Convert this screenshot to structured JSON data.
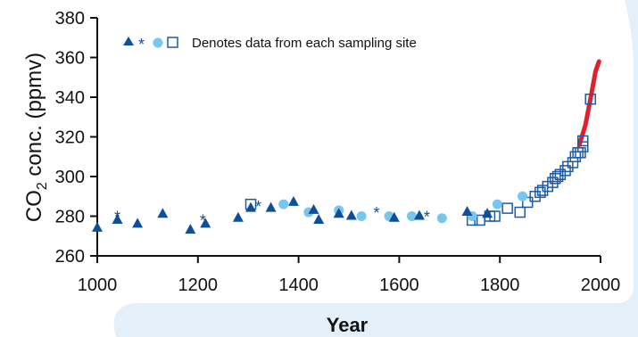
{
  "chart_data": {
    "type": "scatter",
    "xlabel": "Year",
    "ylabel_main": "CO",
    "ylabel_sub": "2",
    "ylabel_tail": " conc. (ppmv)",
    "legend_text": "Denotes data from each sampling site",
    "xlim": [
      1000,
      2000
    ],
    "ylim": [
      260,
      380
    ],
    "x_ticks": [
      1000,
      1200,
      1400,
      1600,
      1800,
      2000
    ],
    "y_ticks": [
      260,
      280,
      300,
      320,
      340,
      360,
      380
    ],
    "colors": {
      "triangle": "#0d4f9c",
      "star": "#0d4f9c",
      "circle": "#76c6ee",
      "square": "#1f5aa6",
      "instrumental": "#e0202a"
    },
    "series": [
      {
        "marker": "triangle",
        "points": [
          [
            1000,
            274
          ],
          [
            1040,
            278
          ],
          [
            1080,
            276
          ],
          [
            1130,
            281
          ],
          [
            1185,
            273
          ],
          [
            1215,
            276
          ],
          [
            1280,
            279
          ],
          [
            1305,
            284
          ],
          [
            1345,
            284
          ],
          [
            1390,
            287
          ],
          [
            1430,
            283
          ],
          [
            1440,
            278
          ],
          [
            1480,
            281
          ],
          [
            1505,
            280
          ],
          [
            1590,
            279
          ],
          [
            1640,
            280
          ],
          [
            1735,
            282
          ],
          [
            1775,
            281
          ]
        ]
      },
      {
        "marker": "star",
        "points": [
          [
            1040,
            281
          ],
          [
            1210,
            279
          ],
          [
            1320,
            286
          ],
          [
            1555,
            283
          ],
          [
            1655,
            281
          ]
        ]
      },
      {
        "marker": "circle",
        "points": [
          [
            1370,
            286
          ],
          [
            1420,
            282
          ],
          [
            1480,
            283
          ],
          [
            1525,
            280
          ],
          [
            1580,
            280
          ],
          [
            1625,
            280
          ],
          [
            1685,
            279
          ],
          [
            1745,
            280
          ],
          [
            1795,
            286
          ],
          [
            1845,
            290
          ]
        ]
      },
      {
        "marker": "square",
        "points": [
          [
            1305,
            286
          ],
          [
            1745,
            278
          ],
          [
            1760,
            278
          ],
          [
            1780,
            280
          ],
          [
            1790,
            280
          ],
          [
            1815,
            284
          ],
          [
            1840,
            282
          ],
          [
            1855,
            287
          ],
          [
            1870,
            290
          ],
          [
            1880,
            292
          ],
          [
            1885,
            293
          ],
          [
            1895,
            295
          ],
          [
            1905,
            297
          ],
          [
            1910,
            299
          ],
          [
            1915,
            300
          ],
          [
            1920,
            301
          ],
          [
            1930,
            303
          ],
          [
            1935,
            305
          ],
          [
            1945,
            307
          ],
          [
            1950,
            310
          ],
          [
            1955,
            312
          ],
          [
            1960,
            312
          ],
          [
            1965,
            315
          ],
          [
            1965,
            318
          ],
          [
            1980,
            339
          ]
        ]
      },
      {
        "marker": "line",
        "points": [
          [
            1958,
            316
          ],
          [
            1970,
            326
          ],
          [
            1980,
            339
          ],
          [
            1990,
            353
          ],
          [
            1997,
            358
          ]
        ]
      }
    ]
  }
}
